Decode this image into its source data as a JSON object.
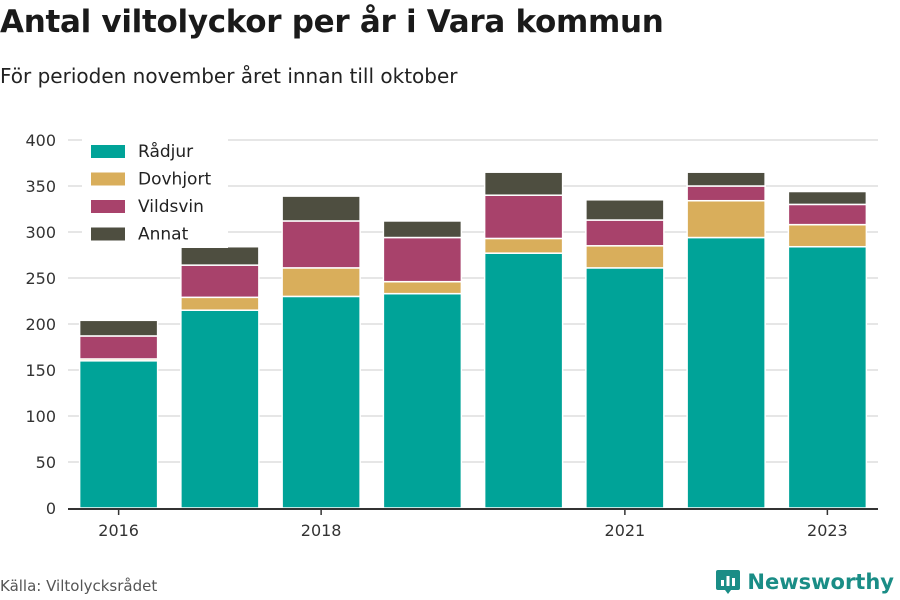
{
  "title": "Antal viltolyckor per år i Vara kommun",
  "subtitle": "För perioden november året innan till oktober",
  "source": "Källa: Viltolycksrådet",
  "brand": {
    "name": "Newsworthy",
    "icon": "newsworthy-logo-icon"
  },
  "colors": {
    "Rådjur": "#00a398",
    "Dovhjort": "#d9ae5b",
    "Vildsvin": "#a8426b",
    "Annat": "#4e4e40",
    "grid": "#dddddd",
    "brand": "#1a8d86"
  },
  "chart_data": {
    "type": "bar",
    "stacked": true,
    "categories": [
      "2016",
      "2017",
      "2018",
      "2019",
      "2020",
      "2021",
      "2022",
      "2023"
    ],
    "x_tick_labels": [
      "2016",
      "",
      "2018",
      "",
      "",
      "2021",
      "",
      "2023"
    ],
    "series": [
      {
        "name": "Rådjur",
        "values": [
          160,
          215,
          230,
          233,
          277,
          261,
          294,
          284
        ]
      },
      {
        "name": "Dovhjort",
        "values": [
          2,
          14,
          31,
          13,
          16,
          24,
          40,
          24
        ]
      },
      {
        "name": "Vildsvin",
        "values": [
          25,
          35,
          51,
          48,
          47,
          28,
          16,
          22
        ]
      },
      {
        "name": "Annat",
        "values": [
          17,
          20,
          27,
          18,
          25,
          22,
          15,
          14
        ]
      }
    ],
    "ylim": [
      0,
      400
    ],
    "yticks": [
      0,
      50,
      100,
      150,
      200,
      250,
      300,
      350,
      400
    ],
    "grid": true,
    "legend": "top-left"
  }
}
